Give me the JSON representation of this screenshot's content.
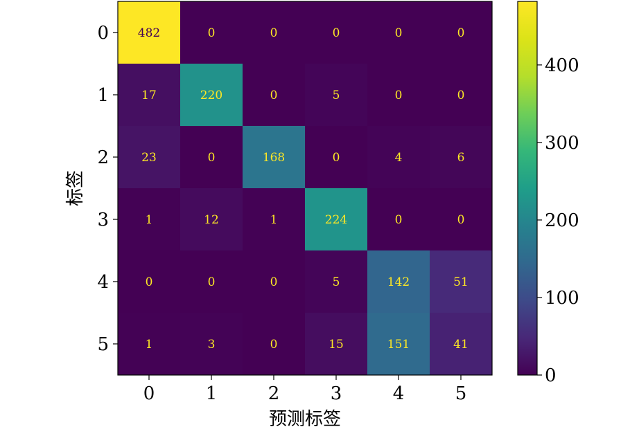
{
  "chart_data": {
    "type": "heatmap",
    "xlabel": "预测标签",
    "ylabel": "标签",
    "x_categories": [
      "0",
      "1",
      "2",
      "3",
      "4",
      "5"
    ],
    "y_categories": [
      "0",
      "1",
      "2",
      "3",
      "4",
      "5"
    ],
    "matrix": [
      [
        482,
        0,
        0,
        0,
        0,
        0
      ],
      [
        17,
        220,
        0,
        5,
        0,
        0
      ],
      [
        23,
        0,
        168,
        0,
        4,
        6
      ],
      [
        1,
        12,
        1,
        224,
        0,
        0
      ],
      [
        0,
        0,
        0,
        5,
        142,
        51
      ],
      [
        1,
        3,
        0,
        15,
        151,
        41
      ]
    ],
    "colormap": "viridis",
    "colorbar": {
      "min": 0,
      "max": 482,
      "ticks": [
        0,
        100,
        200,
        300,
        400
      ],
      "tick_labels": [
        "0",
        "100",
        "200",
        "300",
        "400"
      ]
    },
    "label_colors": {
      "dark_cell": "#fde725",
      "light_cell": "#440154"
    }
  }
}
